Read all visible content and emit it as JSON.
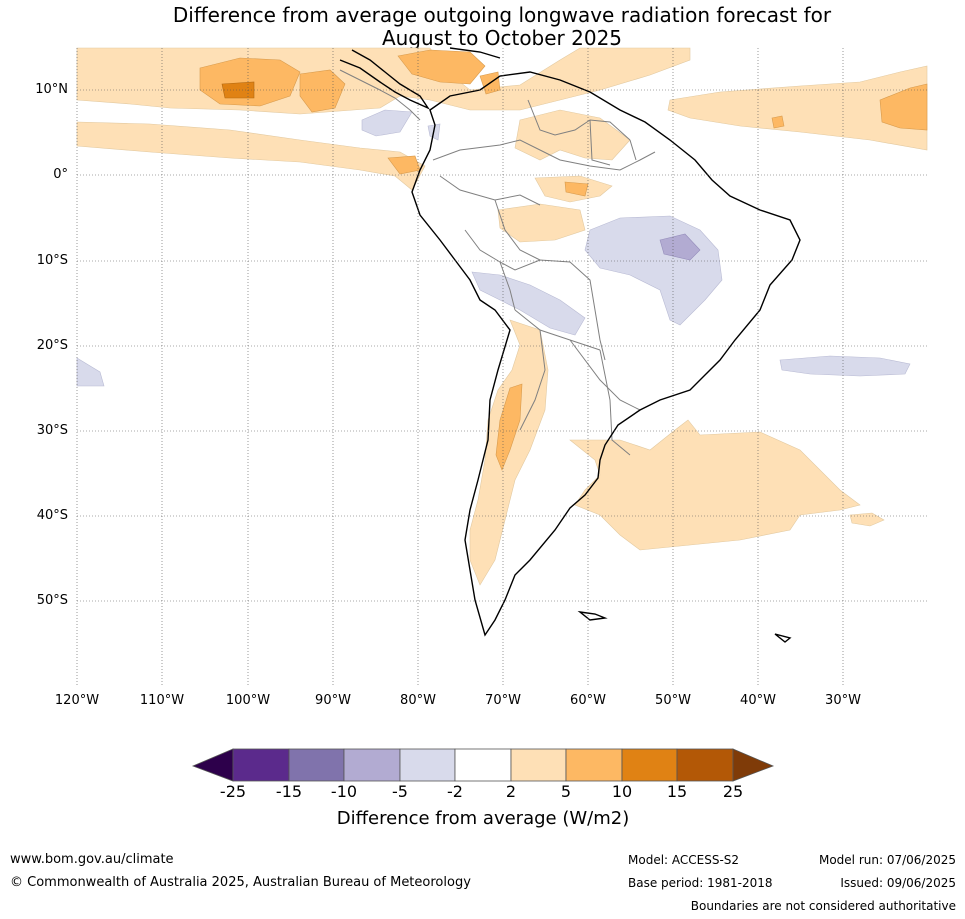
{
  "title_line1": "Difference from average outgoing longwave radiation forecast for",
  "title_line2": "August to October 2025",
  "latitude_labels": [
    "10°N",
    "0°",
    "10°S",
    "20°S",
    "30°S",
    "40°S",
    "50°S"
  ],
  "longitude_labels": [
    "120°W",
    "110°W",
    "100°W",
    "90°W",
    "80°W",
    "70°W",
    "60°W",
    "50°W",
    "40°W",
    "30°W"
  ],
  "colorbar": {
    "title": "Difference from average (W/m2)",
    "ticks": [
      "-25",
      "-15",
      "-10",
      "-5",
      "-2",
      "2",
      "5",
      "10",
      "15",
      "25"
    ],
    "colors": {
      "below_min": "#2d004b",
      "bins": [
        "#5b2a8c",
        "#8073ac",
        "#b2abd2",
        "#d8daeb",
        "#ffffff",
        "#fee0b6",
        "#fdb863",
        "#e08214",
        "#b35806"
      ],
      "above_max": "#7f3b08"
    }
  },
  "footer": {
    "website": "www.bom.gov.au/climate",
    "copyright": "© Commonwealth of Australia 2025, Australian Bureau of Meteorology",
    "model": "Model: ACCESS-S2",
    "base_period": "Base period: 1981-2018",
    "model_run": "Model run: 07/06/2025",
    "issued": "Issued: 09/06/2025",
    "disclaimer": "Boundaries are not considered authoritative"
  }
}
